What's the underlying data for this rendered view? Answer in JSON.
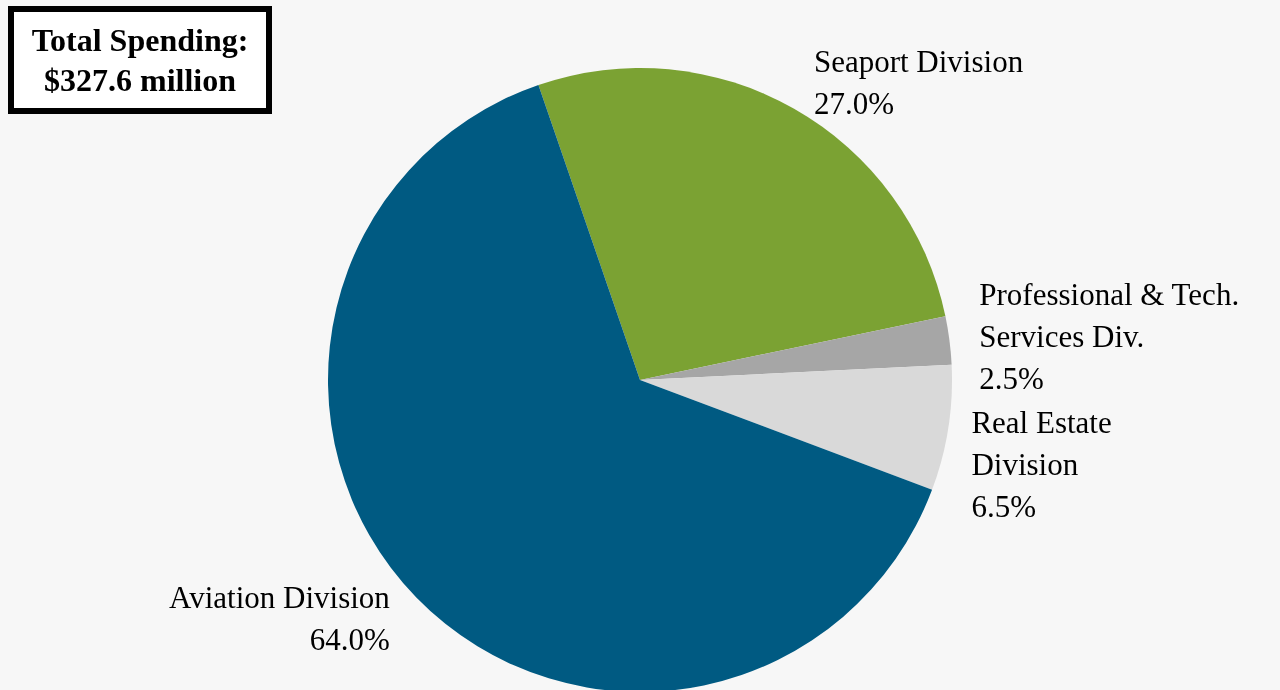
{
  "chart_data": {
    "type": "pie",
    "categories": [
      "Seaport Division",
      "Professional & Tech. Services Div.",
      "Real Estate Division",
      "Aviation Division"
    ],
    "values": [
      27.0,
      2.5,
      6.5,
      64.0
    ],
    "value_labels": [
      "27.0%",
      "2.5%",
      "6.5%",
      "64.0%"
    ],
    "colors": [
      "#7ba233",
      "#a6a6a6",
      "#d9d9d9",
      "#005a82"
    ],
    "annotations": [
      "Total Spending: $327.6 million"
    ],
    "legend": false
  }
}
